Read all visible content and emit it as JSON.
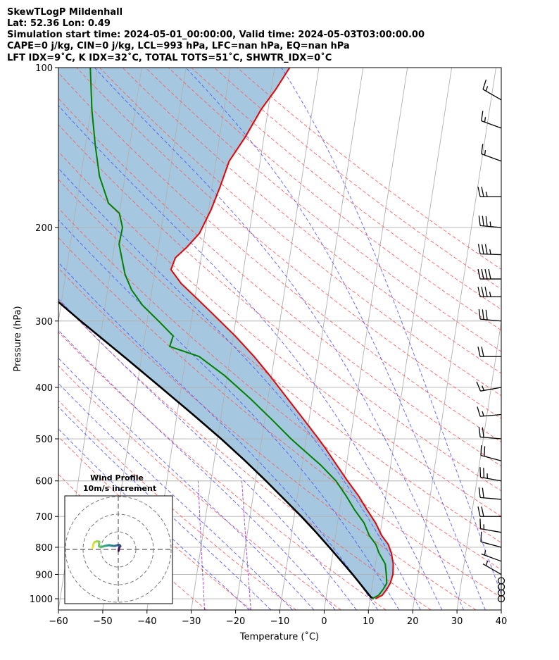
{
  "chart_data": {
    "type": "line",
    "title_lines": [
      "SkewTLogP Mildenhall",
      "Lat: 52.36   Lon: 0.49",
      "Simulation start time: 2024-05-01_00:00:00, Valid time: 2024-05-03T03:00:00.00",
      "CAPE=0 j/kg, CIN=0 j/kg, LCL=993 hPa, LFC=nan hPa, EQ=nan hPa",
      "LFT IDX=9˚C, K IDX=32˚C, TOTAL TOTS=51˚C, SHWTR_IDX=0˚C"
    ],
    "xlabel": "Temperature (˚C)",
    "ylabel": "Pressure (hPa)",
    "xlim": [
      -60,
      40
    ],
    "ylim": [
      1050,
      100
    ],
    "y_scale": "log",
    "skew": true,
    "grid": true,
    "x_ticks": [
      -60,
      -50,
      -40,
      -30,
      -20,
      -10,
      0,
      10,
      20,
      30,
      40
    ],
    "y_ticks": [
      100,
      200,
      300,
      400,
      500,
      600,
      700,
      800,
      900,
      1000
    ],
    "colors": {
      "temperature": "#ee0000",
      "dewpoint": "#008000",
      "parcel": "#000000",
      "fill": "#a5c8e0",
      "dry_adiabat": "#ff5a5a",
      "moist_adiabat": "#4a4aff",
      "mixing_ratio": "#a040c0",
      "isotherm": "#b0b0b0"
    },
    "series": [
      {
        "key": "temperature",
        "pressure": [
          1000,
          985,
          960,
          935,
          900,
          860,
          820,
          790,
          760,
          720,
          680,
          640,
          600,
          560,
          520,
          500,
          460,
          420,
          380,
          350,
          320,
          290,
          270,
          255,
          240,
          228,
          218,
          205,
          185,
          168,
          150,
          135,
          120,
          110,
          100
        ],
        "values": [
          11.2,
          12.6,
          13.4,
          14.0,
          14.3,
          14.0,
          13.2,
          12.2,
          10.4,
          8.6,
          6.2,
          3.8,
          0.8,
          -2.2,
          -5.4,
          -7.2,
          -11.2,
          -15.6,
          -20.4,
          -24.6,
          -29.6,
          -35.6,
          -40.0,
          -43.6,
          -46.4,
          -45.8,
          -43.6,
          -41.2,
          -39.4,
          -38.2,
          -37.0,
          -34.2,
          -31.6,
          -29.0,
          -26.6
        ]
      },
      {
        "key": "dewpoint",
        "pressure": [
          1000,
          985,
          960,
          935,
          900,
          860,
          820,
          790,
          760,
          720,
          680,
          640,
          600,
          560,
          520,
          500,
          460,
          420,
          380,
          350,
          335,
          320,
          300,
          280,
          262,
          245,
          232,
          215,
          200,
          188,
          180,
          160,
          140,
          120,
          100
        ],
        "values": [
          10.4,
          11.8,
          12.6,
          13.2,
          12.8,
          12.2,
          10.4,
          9.4,
          7.6,
          6.0,
          3.4,
          1.0,
          -1.8,
          -5.8,
          -10.8,
          -13.4,
          -18.4,
          -24.0,
          -30.6,
          -37.0,
          -44.0,
          -43.6,
          -47.4,
          -51.6,
          -54.6,
          -56.6,
          -57.6,
          -59.0,
          -58.8,
          -60.0,
          -62.8,
          -65.8,
          -67.8,
          -69.8,
          -71.6
        ]
      },
      {
        "key": "parcel",
        "pressure": [
          1000,
          993,
          950,
          900,
          850,
          800,
          750,
          700,
          650,
          600,
          550,
          500,
          450,
          400,
          350,
          300,
          250,
          200,
          150,
          100
        ],
        "values": [
          10.8,
          10.1,
          7.9,
          5.2,
          2.2,
          -1.0,
          -4.5,
          -8.4,
          -12.8,
          -17.6,
          -23.0,
          -29.2,
          -36.4,
          -44.6,
          -54.0,
          -65.0,
          -77.5,
          -92.0,
          -110.0,
          -133.0
        ]
      }
    ],
    "wind_barbs": {
      "pressure": [
        1000,
        975,
        950,
        925,
        900,
        850,
        800,
        750,
        700,
        650,
        600,
        550,
        500,
        450,
        400,
        350,
        300,
        270,
        250,
        225,
        200,
        175,
        150,
        130,
        115
      ],
      "speed_kt": [
        0,
        0,
        0,
        0,
        3,
        6,
        12,
        16,
        20,
        22,
        25,
        22,
        18,
        14,
        16,
        20,
        30,
        35,
        40,
        35,
        35,
        25,
        15,
        15,
        15
      ],
      "direction_deg": [
        0,
        0,
        0,
        0,
        300,
        290,
        285,
        280,
        270,
        275,
        280,
        285,
        275,
        265,
        260,
        270,
        275,
        270,
        270,
        272,
        275,
        270,
        290,
        290,
        300
      ]
    },
    "inset": {
      "title": "Wind Profile",
      "subtitle": "10m/s increment",
      "u": [
        0.2,
        0.3,
        0.6,
        0.9,
        1.2,
        1.0,
        0.4,
        -0.6,
        -1.8,
        -3.0,
        -4.2,
        -5.2,
        -6.4,
        -7.6,
        -8.8,
        -9.8,
        -10.6,
        -11.0,
        -10.8,
        -12.2,
        -13.4,
        -14.2,
        -14.4,
        -14.6
      ],
      "v": [
        -0.8,
        0.1,
        1.0,
        1.6,
        1.8,
        2.2,
        2.6,
        2.4,
        2.0,
        2.0,
        2.2,
        2.4,
        2.2,
        2.0,
        1.6,
        1.4,
        1.6,
        1.8,
        4.4,
        4.6,
        4.2,
        3.0,
        1.4,
        1.0
      ],
      "rings_ms": [
        10,
        20,
        30
      ]
    }
  }
}
